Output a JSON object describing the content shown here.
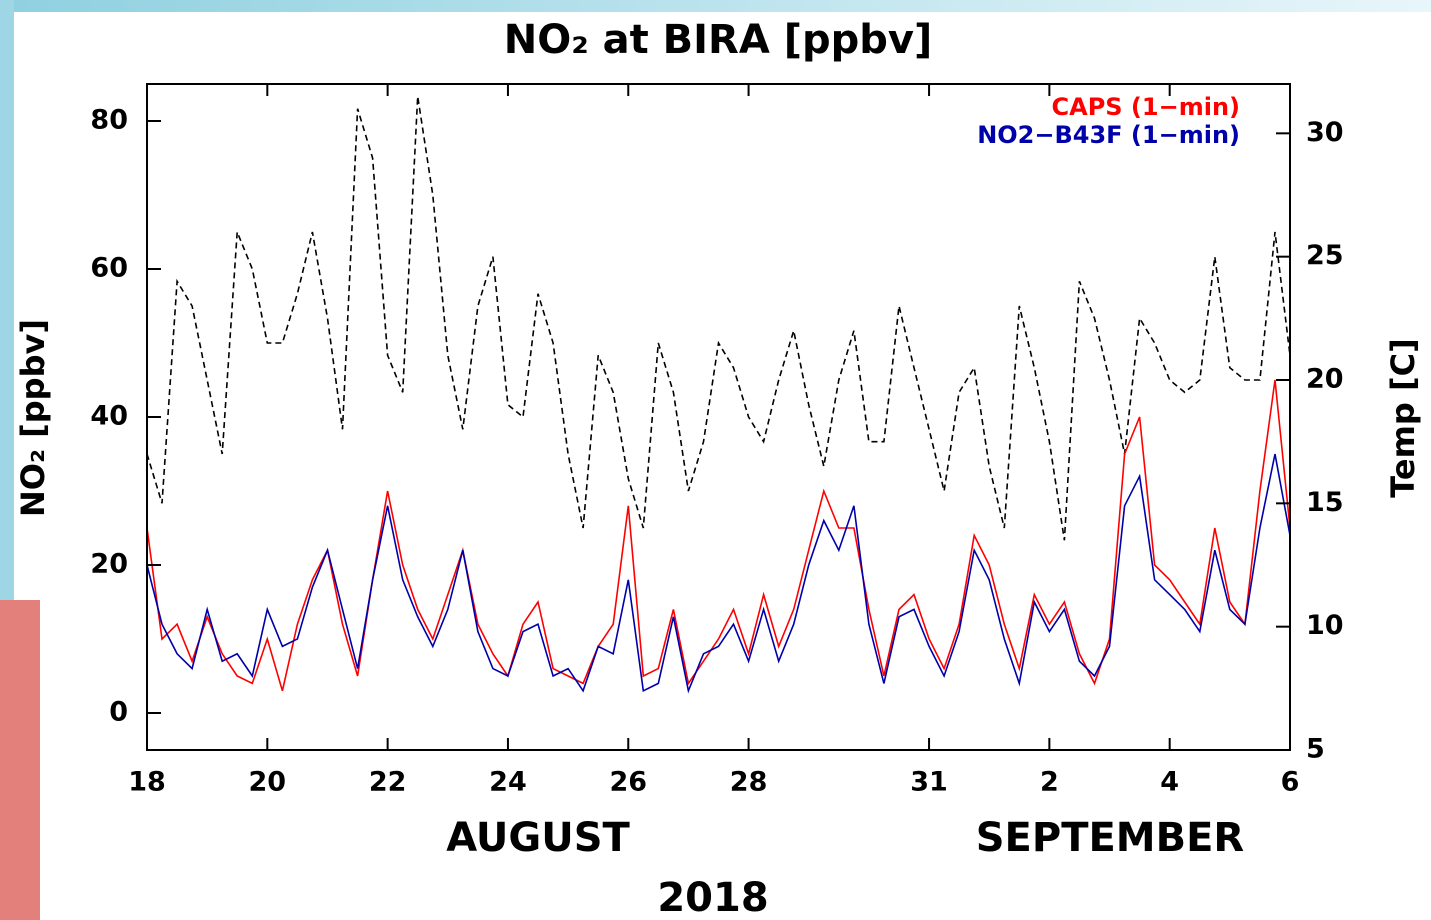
{
  "chart_data": {
    "type": "line",
    "title": "NO₂ at BIRA [ppbv]",
    "ylabel": "NO₂ [ppbv]",
    "y2label": "Temp [C]",
    "annotations": [
      "AUGUST",
      "SEPTEMBER",
      "2018"
    ],
    "x": [
      18,
      18.25,
      18.5,
      18.75,
      19,
      19.25,
      19.5,
      19.75,
      20,
      20.25,
      20.5,
      20.75,
      21,
      21.25,
      21.5,
      21.75,
      22,
      22.25,
      22.5,
      22.75,
      23,
      23.25,
      23.5,
      23.75,
      24,
      24.25,
      24.5,
      24.75,
      25,
      25.25,
      25.5,
      25.75,
      26,
      26.25,
      26.5,
      26.75,
      27,
      27.25,
      27.5,
      27.75,
      28,
      28.25,
      28.5,
      28.75,
      29,
      29.25,
      29.5,
      29.75,
      30,
      30.25,
      30.5,
      30.75,
      31,
      31.25,
      31.5,
      31.75,
      32,
      32.25,
      32.5,
      32.75,
      33,
      33.25,
      33.5,
      33.75,
      34,
      34.25,
      34.5,
      34.75,
      35,
      35.25,
      35.5,
      35.75,
      36,
      36.25,
      36.5,
      36.75,
      37
    ],
    "xlim": [
      18,
      37
    ],
    "xticks": [
      18,
      20,
      22,
      24,
      26,
      28,
      31,
      {
        "value": 33,
        "label": "2"
      },
      {
        "value": 35,
        "label": "4"
      },
      {
        "value": 37,
        "label": "6"
      }
    ],
    "ylim": [
      -5,
      85
    ],
    "yticks": [
      0,
      20,
      40,
      60,
      80
    ],
    "y2lim": [
      5,
      32
    ],
    "y2ticks": [
      5,
      10,
      15,
      20,
      25,
      30
    ],
    "legend": "upper right",
    "series": [
      {
        "name": "CAPS (1−min)",
        "color": "#ff0000",
        "values": [
          25,
          10,
          12,
          7,
          13,
          8,
          5,
          4,
          10,
          3,
          12,
          18,
          22,
          12,
          5,
          18,
          30,
          20,
          14,
          10,
          16,
          22,
          12,
          8,
          5,
          12,
          15,
          6,
          5,
          4,
          9,
          12,
          28,
          5,
          6,
          14,
          4,
          7,
          10,
          14,
          8,
          16,
          9,
          14,
          22,
          30,
          25,
          25,
          14,
          5,
          14,
          16,
          10,
          6,
          12,
          24,
          20,
          12,
          6,
          16,
          12,
          15,
          8,
          4,
          10,
          35,
          40,
          20,
          18,
          15,
          12,
          25,
          15,
          12,
          30,
          45,
          25
        ]
      },
      {
        "name": "NO2−B43F (1−min)",
        "color": "#0000aa",
        "values": [
          20,
          12,
          8,
          6,
          14,
          7,
          8,
          5,
          14,
          9,
          10,
          17,
          22,
          14,
          6,
          18,
          28,
          18,
          13,
          9,
          14,
          22,
          11,
          6,
          5,
          11,
          12,
          5,
          6,
          3,
          9,
          8,
          18,
          3,
          4,
          13,
          3,
          8,
          9,
          12,
          7,
          14,
          7,
          12,
          20,
          26,
          22,
          28,
          12,
          4,
          13,
          14,
          9,
          5,
          11,
          22,
          18,
          10,
          4,
          15,
          11,
          14,
          7,
          5,
          9,
          28,
          32,
          18,
          16,
          14,
          11,
          22,
          14,
          12,
          25,
          35,
          24
        ]
      },
      {
        "color": "#000000",
        "style": "dashed",
        "axis": "y2",
        "values": [
          17,
          15,
          24,
          23,
          20,
          17,
          26,
          24.5,
          21.5,
          21.5,
          23.5,
          26,
          22.5,
          18,
          31,
          29,
          21,
          19.5,
          31.5,
          27.5,
          21,
          18,
          23,
          25,
          19,
          18.5,
          23.5,
          21.5,
          17,
          14,
          21,
          19.5,
          16,
          14,
          21.5,
          19.5,
          15.5,
          17.5,
          21.5,
          20.5,
          18.5,
          17.5,
          20,
          22,
          19,
          16.5,
          20,
          22,
          17.5,
          17.5,
          23,
          20.5,
          18,
          15.5,
          19.5,
          20.5,
          16.5,
          14,
          23,
          20.5,
          17.5,
          13.5,
          24,
          22.5,
          20,
          17,
          22.5,
          21.5,
          20,
          19.5,
          20,
          25,
          20.5,
          20,
          20,
          26,
          21
        ]
      }
    ]
  }
}
